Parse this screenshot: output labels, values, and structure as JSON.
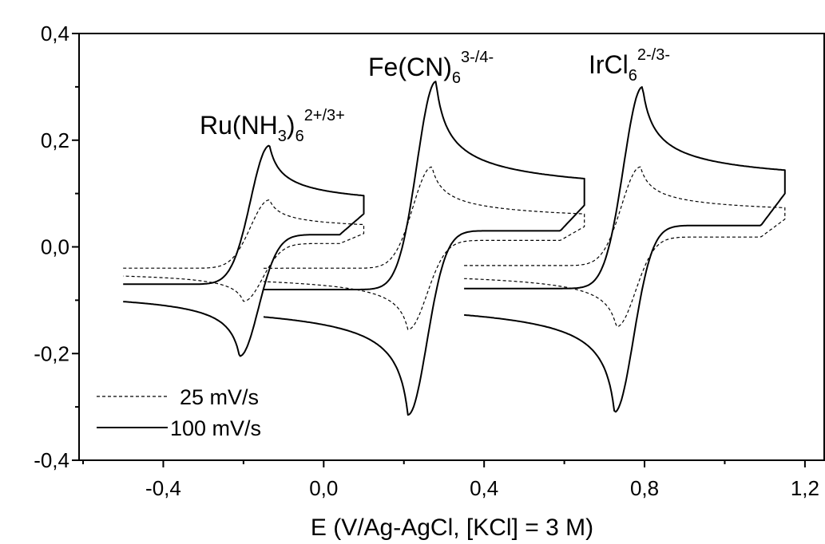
{
  "chart_data": {
    "type": "line",
    "title": "",
    "xlabel": "E (V/Ag-AgCl, [KCl] = 3 M)",
    "ylabel": "",
    "xlim": [
      -0.61,
      1.25
    ],
    "ylim": [
      -0.4,
      0.4
    ],
    "x_ticks": [
      "-0,4",
      "0,0",
      "0,4",
      "0,8",
      "1,2"
    ],
    "x_tick_values": [
      -0.4,
      0.0,
      0.4,
      0.8,
      1.2
    ],
    "y_ticks": [
      "0,4",
      "0,2",
      "0,0",
      "-0,2",
      "-0,4"
    ],
    "y_tick_values": [
      0.4,
      0.2,
      0.0,
      -0.2,
      -0.4
    ],
    "grid": false,
    "legend_position": "bottom-left",
    "legend": [
      {
        "label": "25 mV/s",
        "style": "dashed"
      },
      {
        "label": "100 mV/s",
        "style": "solid"
      }
    ],
    "annotations": [
      {
        "id": "ru",
        "base": "Ru(NH",
        "sub1": "3",
        "mid": ")",
        "sub2": "6",
        "sup": "2+/3+"
      },
      {
        "id": "fe",
        "base": "Fe(CN)",
        "sub1": "",
        "mid": "",
        "sub2": "6",
        "sup": "3-/4-"
      },
      {
        "id": "ir",
        "base": "IrCl",
        "sub1": "",
        "mid": "",
        "sub2": "6",
        "sup": "2-/3-"
      }
    ],
    "series": [
      {
        "couple": "Ru(NH3)6 2+/3+",
        "scan_rate": "100 mV/s",
        "style": "solid",
        "E_start": -0.5,
        "E_end": 0.1,
        "Epa": -0.135,
        "ipa": 0.19,
        "Epc": -0.21,
        "ipc": -0.205,
        "i_start": -0.07,
        "i_end": 0.062
      },
      {
        "couple": "Ru(NH3)6 2+/3+",
        "scan_rate": "25 mV/s",
        "style": "dashed",
        "E_start": -0.5,
        "E_end": 0.1,
        "Epa": -0.135,
        "ipa": 0.088,
        "Epc": -0.2,
        "ipc": -0.102,
        "i_start": -0.04,
        "i_end": 0.025
      },
      {
        "couple": "Fe(CN)6 3-/4-",
        "scan_rate": "100 mV/s",
        "style": "solid",
        "E_start": -0.15,
        "E_end": 0.65,
        "Epa": 0.28,
        "ipa": 0.31,
        "Epc": 0.21,
        "ipc": -0.315,
        "i_start": -0.08,
        "i_end": 0.078
      },
      {
        "couple": "Fe(CN)6 3-/4-",
        "scan_rate": "25 mV/s",
        "style": "dashed",
        "E_start": -0.15,
        "E_end": 0.65,
        "Epa": 0.27,
        "ipa": 0.15,
        "Epc": 0.21,
        "ipc": -0.155,
        "i_start": -0.04,
        "i_end": 0.038
      },
      {
        "couple": "IrCl6 2-/3-",
        "scan_rate": "100 mV/s",
        "style": "solid",
        "E_start": 0.35,
        "E_end": 1.15,
        "Epa": 0.795,
        "ipa": 0.3,
        "Epc": 0.725,
        "ipc": -0.31,
        "i_start": -0.078,
        "i_end": 0.1
      },
      {
        "couple": "IrCl6 2-/3-",
        "scan_rate": "25 mV/s",
        "style": "dashed",
        "E_start": 0.35,
        "E_end": 1.15,
        "Epa": 0.79,
        "ipa": 0.15,
        "Epc": 0.73,
        "ipc": -0.15,
        "i_start": -0.035,
        "i_end": 0.052
      }
    ]
  }
}
